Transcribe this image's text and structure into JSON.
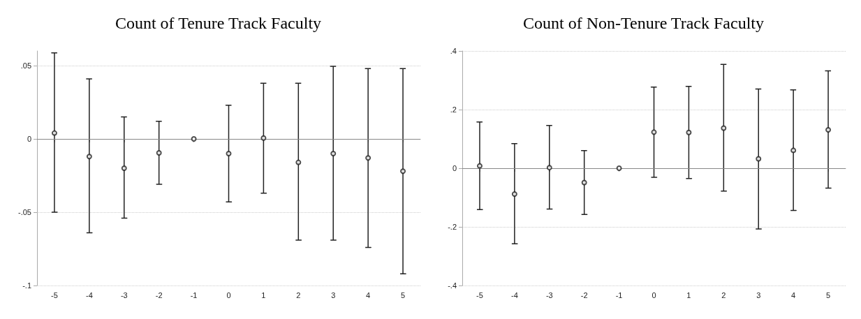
{
  "chart_data": [
    {
      "type": "scatter",
      "title": "Count of Tenure Track Faculty",
      "categories": [
        "-5",
        "-4",
        "-3",
        "-2",
        "-1",
        "0",
        "1",
        "2",
        "3",
        "4",
        "5"
      ],
      "series": [
        {
          "color": "#222222",
          "values": [
            0.004,
            -0.012,
            -0.02,
            -0.0095,
            0,
            -0.01,
            0.0006,
            -0.016,
            -0.01,
            -0.013,
            -0.022
          ],
          "errors": [
            [
              -0.05,
              0.0587
            ],
            [
              -0.064,
              0.041
            ],
            [
              -0.054,
              0.015
            ],
            [
              -0.031,
              0.012
            ],
            null,
            [
              -0.043,
              0.023
            ],
            [
              -0.037,
              0.038
            ],
            [
              -0.069,
              0.038
            ],
            [
              -0.069,
              0.0495
            ],
            [
              -0.074,
              0.048
            ],
            [
              -0.092,
              0.048
            ]
          ]
        }
      ],
      "ylim": [
        -0.1,
        0.06
      ],
      "yticks": [
        {
          "value": -0.1,
          "label": "-.1"
        },
        {
          "value": -0.05,
          "label": "-.05"
        },
        0,
        {
          "value": 0.05,
          "label": ".05"
        }
      ],
      "grid": "y",
      "marker": "circle",
      "ref_lines": [
        {
          "axis": "y",
          "value": 0,
          "color": "#888888"
        }
      ]
    },
    {
      "type": "scatter",
      "title": "Count of Non-Tenure Track Faculty",
      "categories": [
        "-5",
        "-4",
        "-3",
        "-2",
        "-1",
        "0",
        "1",
        "2",
        "3",
        "4",
        "5"
      ],
      "series": [
        {
          "color": "#222222",
          "values": [
            0.008,
            -0.088,
            0.002,
            -0.049,
            0,
            0.123,
            0.122,
            0.137,
            0.032,
            0.061,
            0.131
          ],
          "errors": [
            [
              -0.141,
              0.158
            ],
            [
              -0.258,
              0.084
            ],
            [
              -0.139,
              0.146
            ],
            [
              -0.158,
              0.06
            ],
            null,
            [
              -0.031,
              0.277
            ],
            [
              -0.035,
              0.279
            ],
            [
              -0.078,
              0.354
            ],
            [
              -0.207,
              0.27
            ],
            [
              -0.144,
              0.267
            ],
            [
              -0.068,
              0.332
            ]
          ]
        }
      ],
      "ylim": [
        -0.4,
        0.4
      ],
      "yticks": [
        {
          "value": -0.4,
          "label": "-.4"
        },
        {
          "value": -0.2,
          "label": "-.2"
        },
        0,
        {
          "value": 0.2,
          "label": ".2"
        },
        {
          "value": 0.4,
          "label": ".4"
        }
      ],
      "grid": "y",
      "marker": "circle",
      "ref_lines": [
        {
          "axis": "y",
          "value": 0,
          "color": "#888888"
        }
      ]
    }
  ]
}
